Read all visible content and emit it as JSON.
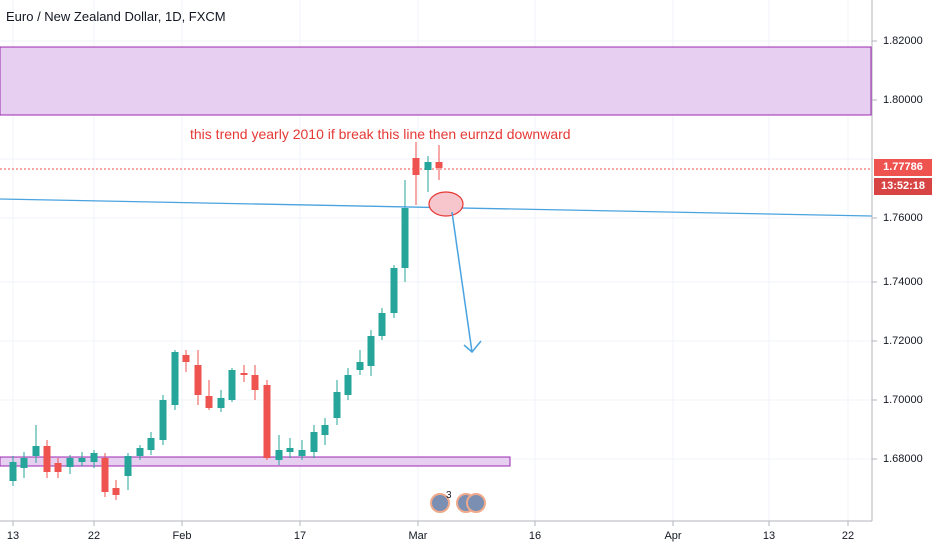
{
  "header": {
    "symbol_title": "Euro / New Zealand Dollar, 1D, FXCM"
  },
  "annotation": {
    "text": "this trend yearly 2010 if break this line then eurnzd downward"
  },
  "price_axis": {
    "labels": [
      "1.82000",
      "1.80000",
      "1.76000",
      "1.74000",
      "1.72000",
      "1.70000",
      "1.68000"
    ]
  },
  "time_axis": {
    "labels": [
      "13",
      "22",
      "Feb",
      "17",
      "Mar",
      "16",
      "Apr",
      "13",
      "22"
    ]
  },
  "last_price": {
    "value": "1.77786",
    "countdown": "13:52:18"
  },
  "events": {
    "count": "3"
  },
  "colors": {
    "up": "#26a69a",
    "down": "#ef5350",
    "trendline": "#4aa3df",
    "zone_fill": "#e6cff0",
    "zone_border": "#9c27b0"
  }
}
